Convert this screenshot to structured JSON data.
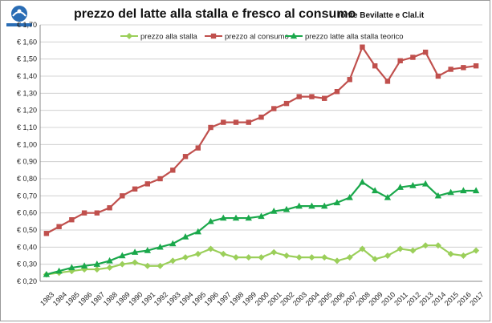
{
  "title": "prezzo del latte alla stalla e fresco al consumo",
  "source": "fonte Bevilatte e Clal.it",
  "logo_text": "Legambiente",
  "chart_data": {
    "type": "line",
    "title": "prezzo del latte alla stalla e fresco al consumo",
    "xlabel": "",
    "ylabel": "",
    "ylim": [
      0.2,
      1.7
    ],
    "y_tick_step": 0.1,
    "y_tick_labels": [
      "€ 0,20",
      "€ 0,30",
      "€ 0,40",
      "€ 0,50",
      "€ 0,60",
      "€ 0,70",
      "€ 0,80",
      "€ 0,90",
      "€ 1,00",
      "€ 1,10",
      "€ 1,20",
      "€ 1,30",
      "€ 1,40",
      "€ 1,50",
      "€ 1,60",
      "€ 1,70"
    ],
    "grid": true,
    "legend_position": "top",
    "categories": [
      "1983",
      "1984",
      "1985",
      "1986",
      "1987",
      "1988",
      "1989",
      "1990",
      "1991",
      "1992",
      "1993",
      "1994",
      "1995",
      "1996",
      "1997",
      "1998",
      "1999",
      "2000",
      "2001",
      "2002",
      "2003",
      "2004",
      "2005",
      "2006",
      "2007",
      "2008",
      "2009",
      "2010",
      "2011",
      "2012",
      "2013",
      "2014",
      "2015",
      "2016",
      "2017"
    ],
    "series": [
      {
        "name": "prezzo alla stalla",
        "color": "#9bcf5a",
        "marker": "diamond",
        "values": [
          0.24,
          0.25,
          0.26,
          0.27,
          0.27,
          0.28,
          0.3,
          0.31,
          0.29,
          0.29,
          0.32,
          0.34,
          0.36,
          0.39,
          0.36,
          0.34,
          0.34,
          0.34,
          0.37,
          0.35,
          0.34,
          0.34,
          0.34,
          0.32,
          0.34,
          0.39,
          0.33,
          0.35,
          0.39,
          0.38,
          0.41,
          0.41,
          0.36,
          0.35,
          0.38
        ]
      },
      {
        "name": "prezzo al consumo",
        "color": "#c0504d",
        "marker": "square",
        "values": [
          0.48,
          0.52,
          0.56,
          0.6,
          0.6,
          0.63,
          0.7,
          0.74,
          0.77,
          0.8,
          0.85,
          0.93,
          0.98,
          1.1,
          1.13,
          1.13,
          1.13,
          1.16,
          1.21,
          1.24,
          1.28,
          1.28,
          1.27,
          1.31,
          1.38,
          1.57,
          1.46,
          1.37,
          1.49,
          1.51,
          1.54,
          1.4,
          1.44,
          1.45,
          1.46
        ]
      },
      {
        "name": "prezzo latte alla stalla teorico",
        "color": "#1aa84b",
        "marker": "triangle",
        "values": [
          0.24,
          0.26,
          0.28,
          0.29,
          0.3,
          0.32,
          0.35,
          0.37,
          0.38,
          0.4,
          0.42,
          0.46,
          0.49,
          0.55,
          0.57,
          0.57,
          0.57,
          0.58,
          0.61,
          0.62,
          0.64,
          0.64,
          0.64,
          0.66,
          0.69,
          0.78,
          0.73,
          0.69,
          0.75,
          0.76,
          0.77,
          0.7,
          0.72,
          0.73,
          0.73
        ]
      }
    ]
  }
}
